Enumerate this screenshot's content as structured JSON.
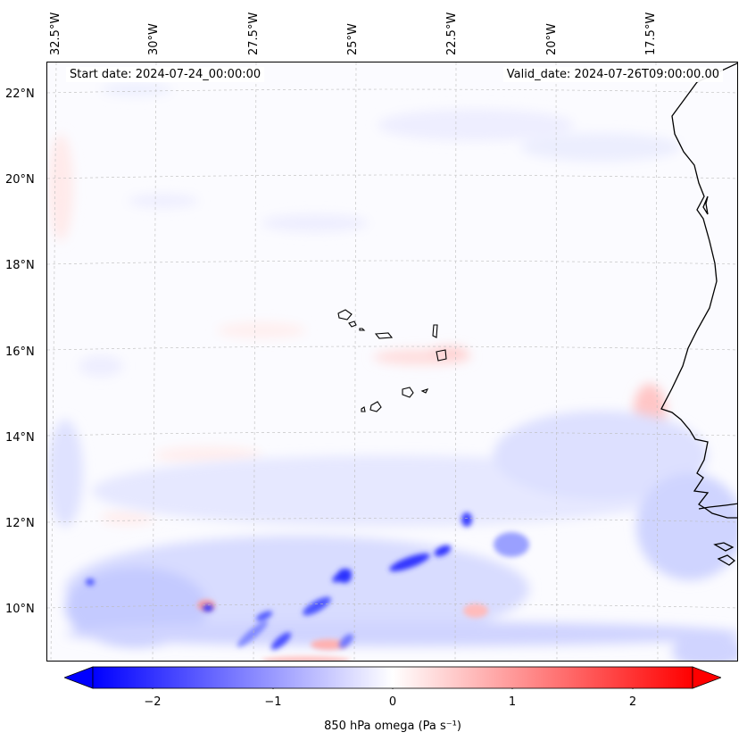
{
  "map": {
    "start_date": "Start date: 2024-07-24_00:00:00",
    "valid_date": "Valid_date: 2024-07-26T09:00:00.00",
    "lon_labels": [
      "32.5°W",
      "30°W",
      "27.5°W",
      "25°W",
      "22.5°W",
      "20°W",
      "17.5°W"
    ],
    "lat_labels": [
      "22°N",
      "20°N",
      "18°N",
      "16°N",
      "14°N",
      "12°N",
      "10°N"
    ],
    "variable": "850 hPa omega",
    "colormap": "bwr",
    "extent": {
      "lon_min": -33,
      "lon_max": -16,
      "lat_min": 9,
      "lat_max": 22.5
    },
    "gridlines": true,
    "coastline_color": "#000000"
  },
  "colorbar": {
    "label": "850 hPa omega (Pa s⁻¹)",
    "ticks": [
      "−2",
      "−1",
      "0",
      "1",
      "2"
    ],
    "range": [
      -2.5,
      2.5
    ],
    "extend": "both",
    "color_min": "#0000ff",
    "color_mid": "#ffffff",
    "color_max": "#ff0000"
  }
}
